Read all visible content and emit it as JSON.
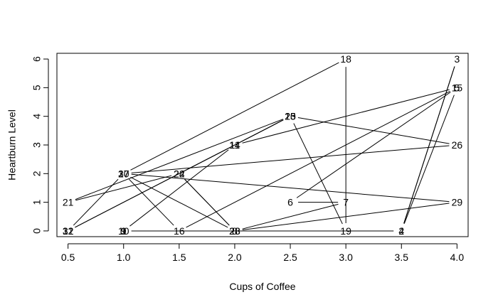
{
  "chart_data": {
    "type": "line",
    "title": "",
    "xlabel": "Cups of Coffee",
    "ylabel": "Heartburn Level",
    "xlim": [
      0.4,
      4.1
    ],
    "ylim": [
      -0.2,
      6.2
    ],
    "xticks": [
      "0.5",
      "1.0",
      "1.5",
      "2.0",
      "2.5",
      "3.0",
      "3.5",
      "4.0"
    ],
    "xtick_values": [
      0.5,
      1.0,
      1.5,
      2.0,
      2.5,
      3.0,
      3.5,
      4.0
    ],
    "yticks": [
      "0",
      "1",
      "2",
      "3",
      "4",
      "5",
      "6"
    ],
    "ytick_values": [
      0,
      1,
      2,
      3,
      4,
      5,
      6
    ],
    "grid": false,
    "point_labels_as_markers": true,
    "points": [
      {
        "id": "1",
        "x": 1.0,
        "y": 0
      },
      {
        "id": "2",
        "x": 3.5,
        "y": 0
      },
      {
        "id": "3",
        "x": 4.0,
        "y": 6
      },
      {
        "id": "4",
        "x": 3.5,
        "y": 0
      },
      {
        "id": "5",
        "x": 4.0,
        "y": 5
      },
      {
        "id": "6",
        "x": 2.5,
        "y": 1
      },
      {
        "id": "7",
        "x": 3.0,
        "y": 1
      },
      {
        "id": "8",
        "x": 2.0,
        "y": 0
      },
      {
        "id": "9",
        "x": 1.0,
        "y": 0
      },
      {
        "id": "10",
        "x": 1.0,
        "y": 0
      },
      {
        "id": "11",
        "x": 2.0,
        "y": 3
      },
      {
        "id": "12",
        "x": 0.5,
        "y": 0
      },
      {
        "id": "13",
        "x": 2.5,
        "y": 4
      },
      {
        "id": "14",
        "x": 2.0,
        "y": 3
      },
      {
        "id": "15",
        "x": 4.0,
        "y": 5
      },
      {
        "id": "16",
        "x": 1.5,
        "y": 0
      },
      {
        "id": "17",
        "x": 1.0,
        "y": 2
      },
      {
        "id": "18",
        "x": 3.0,
        "y": 6
      },
      {
        "id": "19",
        "x": 3.0,
        "y": 0
      },
      {
        "id": "20",
        "x": 2.5,
        "y": 4
      },
      {
        "id": "21",
        "x": 0.5,
        "y": 1
      },
      {
        "id": "22",
        "x": 1.5,
        "y": 2
      },
      {
        "id": "23",
        "x": 2.0,
        "y": 0
      },
      {
        "id": "24",
        "x": 1.5,
        "y": 2
      },
      {
        "id": "25",
        "x": 2.5,
        "y": 4
      },
      {
        "id": "26",
        "x": 4.0,
        "y": 3
      },
      {
        "id": "27",
        "x": 1.0,
        "y": 2
      },
      {
        "id": "28",
        "x": 2.0,
        "y": 0
      },
      {
        "id": "29",
        "x": 4.0,
        "y": 1
      },
      {
        "id": "30",
        "x": 1.0,
        "y": 2
      },
      {
        "id": "31",
        "x": 0.5,
        "y": 0
      },
      {
        "id": "32",
        "x": 0.5,
        "y": 0
      }
    ]
  }
}
